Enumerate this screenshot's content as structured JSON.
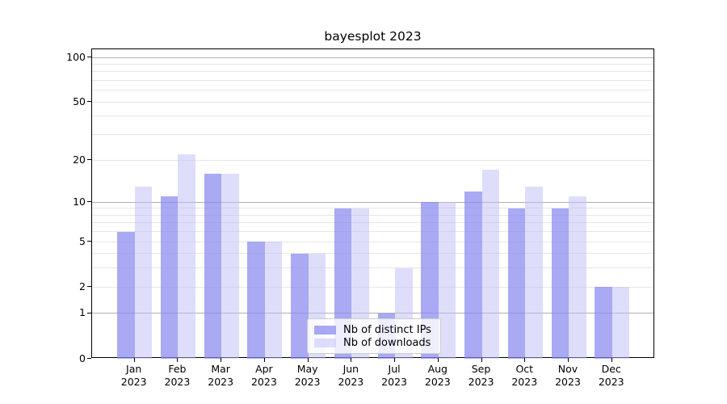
{
  "chart_data": {
    "type": "bar",
    "title": "bayesplot 2023",
    "categories": [
      {
        "month": "Jan",
        "year": "2023"
      },
      {
        "month": "Feb",
        "year": "2023"
      },
      {
        "month": "Mar",
        "year": "2023"
      },
      {
        "month": "Apr",
        "year": "2023"
      },
      {
        "month": "May",
        "year": "2023"
      },
      {
        "month": "Jun",
        "year": "2023"
      },
      {
        "month": "Jul",
        "year": "2023"
      },
      {
        "month": "Aug",
        "year": "2023"
      },
      {
        "month": "Sep",
        "year": "2023"
      },
      {
        "month": "Oct",
        "year": "2023"
      },
      {
        "month": "Nov",
        "year": "2023"
      },
      {
        "month": "Dec",
        "year": "2023"
      }
    ],
    "series": [
      {
        "name": "Nb of distinct IPs",
        "color": "#8888f0",
        "alpha": 0.72,
        "values": [
          6,
          11,
          16,
          5,
          4,
          9,
          1,
          10,
          12,
          9,
          9,
          2
        ]
      },
      {
        "name": "Nb of downloads",
        "color": "#bdbdf5",
        "alpha": 0.5,
        "values": [
          13,
          22,
          16,
          5,
          4,
          9,
          3,
          10,
          17,
          13,
          11,
          2
        ]
      }
    ],
    "yscale": "log1p",
    "ylim": [
      0,
      113.5
    ],
    "yticks": [
      {
        "value": 100,
        "label": "100"
      },
      {
        "value": 50,
        "label": "50"
      },
      {
        "value": 20,
        "label": "20"
      },
      {
        "value": 10,
        "label": "10"
      },
      {
        "value": 5,
        "label": "5"
      },
      {
        "value": 2,
        "label": "2"
      },
      {
        "value": 1,
        "label": "1"
      },
      {
        "value": 0,
        "label": "0"
      }
    ],
    "major_gridlines": [
      1,
      10,
      100
    ],
    "minor_gridlines": [
      2,
      3,
      4,
      5,
      6,
      7,
      8,
      9,
      20,
      30,
      40,
      50,
      60,
      70,
      80,
      90
    ],
    "grid": true,
    "legend_position": "lower center",
    "colors": {
      "major_grid": "#b0b0b0",
      "minor_grid": "#e7e7e7",
      "axis": "#000000",
      "text": "#000000",
      "legend_border": "#cccccc"
    }
  }
}
